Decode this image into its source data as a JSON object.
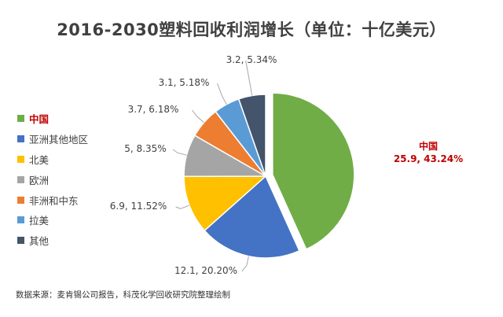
{
  "chart_data": {
    "type": "pie",
    "title": "2016-2030塑料回收利润增长（单位：十亿美元）",
    "source": "数据来源：麦肯锡公司报告，科茂化学回收研究院整理绘制",
    "legend_position": "left",
    "slices": [
      {
        "name": "中国",
        "value": 25.9,
        "percent": 43.24,
        "label": "25.9, 43.24%",
        "color": "#70ad47",
        "highlight": true
      },
      {
        "name": "亚洲其他地区",
        "value": 12.1,
        "percent": 20.2,
        "label": "12.1, 20.20%",
        "color": "#4472c4"
      },
      {
        "name": "北美",
        "value": 6.9,
        "percent": 11.52,
        "label": "6.9, 11.52%",
        "color": "#ffc000"
      },
      {
        "name": "欧洲",
        "value": 5,
        "percent": 8.35,
        "label": "5, 8.35%",
        "color": "#a5a5a5"
      },
      {
        "name": "非洲和中东",
        "value": 3.7,
        "percent": 6.18,
        "label": "3.7, 6.18%",
        "color": "#ed7d31"
      },
      {
        "name": "拉美",
        "value": 3.1,
        "percent": 5.18,
        "label": "3.1, 5.18%",
        "color": "#5b9bd5"
      },
      {
        "name": "其他",
        "value": 3.2,
        "percent": 5.34,
        "label": "3.2, 5.34%",
        "color": "#44546a"
      }
    ]
  }
}
